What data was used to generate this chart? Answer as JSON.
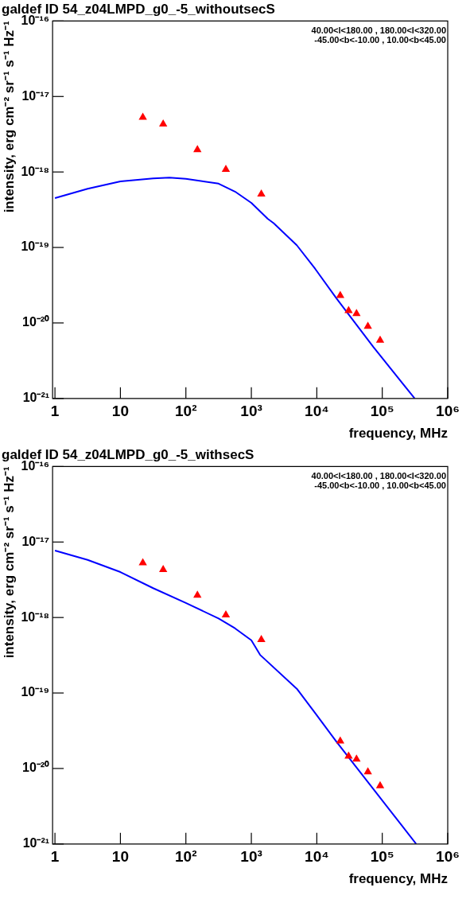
{
  "chart_data": [
    {
      "type": "scatter",
      "title": "galdef ID 54_z04LMPD_g0_-5_withoutsecS",
      "xlabel": "frequency, MHz",
      "ylabel": "intensity, erg cm⁻² sr⁻¹ s⁻¹ Hz⁻¹",
      "annotations": [
        "40.00<l<180.00 , 180.00<l<320.00",
        "-45.00<b<-10.00 , 10.00<b<45.00"
      ],
      "log": "xy",
      "xlim": [
        0.92,
        1000000
      ],
      "ylim": [
        1e-21,
        1e-16
      ],
      "xticks": [
        {
          "value": 1,
          "label": "1"
        },
        {
          "value": 10,
          "label": "10"
        },
        {
          "value": 100,
          "label": "10²"
        },
        {
          "value": 1000,
          "label": "10³"
        },
        {
          "value": 10000,
          "label": "10⁴"
        },
        {
          "value": 100000,
          "label": "10⁵"
        },
        {
          "value": 1000000,
          "label": "10⁶"
        }
      ],
      "yticks": [
        {
          "value": 1e-21,
          "label": "10⁻²¹"
        },
        {
          "value": 1e-20,
          "label": "10⁻²⁰"
        },
        {
          "value": 1e-19,
          "label": "10⁻¹⁹"
        },
        {
          "value": 1e-18,
          "label": "10⁻¹⁸"
        },
        {
          "value": 1e-17,
          "label": "10⁻¹⁷"
        },
        {
          "value": 1e-16,
          "label": "10⁻¹⁶"
        }
      ],
      "series": [
        {
          "type": "line",
          "color": "#0000ff",
          "marker": "none",
          "x": [
            1,
            3.16,
            10,
            31.6,
            56,
            100,
            316,
            562,
            1000,
            1780,
            2190,
            4950,
            9460,
            20100,
            73100,
            313000
          ],
          "values": [
            4.5e-19,
            6e-19,
            7.5e-19,
            8.2e-19,
            8.4e-19,
            8.1e-19,
            7e-19,
            5.5e-19,
            3.9e-19,
            2.4e-19,
            2.1e-19,
            1.07e-19,
            5.2e-20,
            2.1e-20,
            4.8e-21,
            1e-21
          ]
        },
        {
          "type": "scatter",
          "color": "#ff0000",
          "marker": "triangle",
          "x": [
            22,
            45,
            150,
            408,
            1420,
            22800,
            30600,
            40400,
            60300,
            92700
          ],
          "values": [
            5.3e-18,
            4.3e-18,
            1.97e-18,
            1.08e-18,
            5.1e-19,
            2.3e-20,
            1.45e-20,
            1.33e-20,
            9e-21,
            5.9e-21
          ]
        }
      ]
    },
    {
      "type": "scatter",
      "title": "galdef ID 54_z04LMPD_g0_-5_withsecS",
      "xlabel": "frequency, MHz",
      "ylabel": "intensity, erg cm⁻² sr⁻¹ s⁻¹ Hz⁻¹",
      "annotations": [
        "40.00<l<180.00 , 180.00<l<320.00",
        "-45.00<b<-10.00 , 10.00<b<45.00"
      ],
      "log": "xy",
      "xlim": [
        0.92,
        1000000
      ],
      "ylim": [
        1e-21,
        1e-16
      ],
      "xticks": [
        {
          "value": 1,
          "label": "1"
        },
        {
          "value": 10,
          "label": "10"
        },
        {
          "value": 100,
          "label": "10²"
        },
        {
          "value": 1000,
          "label": "10³"
        },
        {
          "value": 10000,
          "label": "10⁴"
        },
        {
          "value": 100000,
          "label": "10⁵"
        },
        {
          "value": 1000000,
          "label": "10⁶"
        }
      ],
      "yticks": [
        {
          "value": 1e-21,
          "label": "10⁻²¹"
        },
        {
          "value": 1e-20,
          "label": "10⁻²⁰"
        },
        {
          "value": 1e-19,
          "label": "10⁻¹⁹"
        },
        {
          "value": 1e-18,
          "label": "10⁻¹⁸"
        },
        {
          "value": 1e-17,
          "label": "10⁻¹⁷"
        },
        {
          "value": 1e-16,
          "label": "10⁻¹⁶"
        }
      ],
      "series": [
        {
          "type": "line",
          "color": "#0000ff",
          "marker": "none",
          "x": [
            1,
            3.16,
            10,
            31.6,
            100,
            316,
            562,
            1000,
            1360,
            4950,
            9460,
            20100,
            330000
          ],
          "values": [
            7.7e-18,
            5.8e-18,
            4e-18,
            2.45e-18,
            1.56e-18,
            9.7e-19,
            7.2e-19,
            5e-19,
            3.2e-19,
            1.14e-19,
            5.4e-20,
            2.24e-20,
            1e-21
          ]
        },
        {
          "type": "scatter",
          "color": "#ff0000",
          "marker": "triangle",
          "x": [
            22,
            45,
            150,
            408,
            1420,
            22800,
            30600,
            40400,
            60300,
            92700
          ],
          "values": [
            5.3e-18,
            4.3e-18,
            1.97e-18,
            1.08e-18,
            5.1e-19,
            2.3e-20,
            1.45e-20,
            1.33e-20,
            9e-21,
            5.9e-21
          ]
        }
      ]
    }
  ]
}
